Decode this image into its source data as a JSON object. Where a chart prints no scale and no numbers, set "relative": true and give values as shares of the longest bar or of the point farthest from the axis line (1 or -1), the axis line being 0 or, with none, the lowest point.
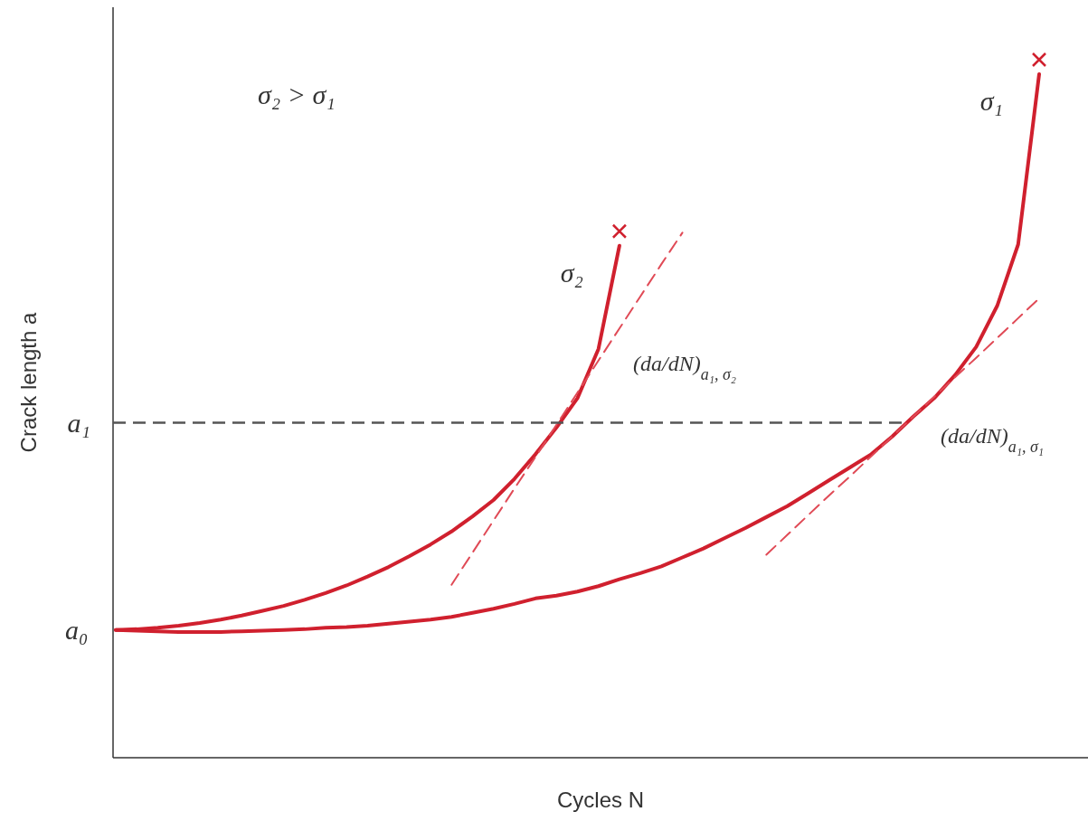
{
  "chart_data": {
    "type": "line",
    "relative": true,
    "xlabel": "Cycles N",
    "ylabel": "Crack length a",
    "categories": [
      null,
      null,
      null,
      null,
      null,
      null,
      null,
      null,
      null,
      null,
      null,
      null,
      null,
      null,
      null,
      null,
      null,
      null,
      null,
      null,
      null,
      null,
      null,
      null,
      null,
      null,
      null,
      null,
      null,
      null,
      null,
      null,
      null,
      null,
      null,
      null,
      null,
      null,
      null,
      null,
      null,
      null,
      null,
      null,
      null
    ],
    "series": [
      {
        "name": "σ₂",
        "color": "#d0202e",
        "values": [
          0.187,
          0.188,
          0.19,
          0.193,
          0.197,
          0.202,
          0.208,
          0.215,
          0.222,
          0.231,
          0.241,
          0.252,
          0.265,
          0.279,
          0.295,
          0.312,
          0.331,
          0.353,
          0.377,
          0.408,
          0.444,
          0.483,
          0.526,
          0.598,
          0.749,
          null,
          null,
          null,
          null,
          null,
          null,
          null,
          null,
          null,
          null,
          null,
          null,
          null,
          null,
          null,
          null,
          null,
          null,
          null,
          null
        ]
      },
      {
        "name": "σ₁",
        "color": "#d0202e",
        "values": [
          0.187,
          0.186,
          0.185,
          0.184,
          0.184,
          0.184,
          0.185,
          0.186,
          0.187,
          0.188,
          0.19,
          0.191,
          0.193,
          0.196,
          0.199,
          0.202,
          0.206,
          0.212,
          0.218,
          0.225,
          0.233,
          0.237,
          0.243,
          0.251,
          0.261,
          0.27,
          0.28,
          0.293,
          0.306,
          0.321,
          0.336,
          0.352,
          0.368,
          0.387,
          0.406,
          0.425,
          0.444,
          0.47,
          0.499,
          0.526,
          0.56,
          0.601,
          0.661,
          0.751,
          1.0
        ]
      },
      {
        "color": "#e04a56",
        "line_style": "dashed",
        "values": [
          null,
          null,
          null,
          null,
          null,
          null,
          null,
          null,
          null,
          null,
          null,
          null,
          null,
          null,
          null,
          null,
          0.253,
          0.3,
          0.347,
          0.394,
          0.44,
          0.487,
          0.534,
          0.581,
          0.628,
          0.675,
          0.722,
          0.768,
          null,
          null,
          null,
          null,
          null,
          null,
          null,
          null,
          null,
          null,
          null,
          null,
          null,
          null,
          null,
          null,
          null
        ]
      },
      {
        "color": "#e04a56",
        "line_style": "dashed",
        "values": [
          null,
          null,
          null,
          null,
          null,
          null,
          null,
          null,
          null,
          null,
          null,
          null,
          null,
          null,
          null,
          null,
          null,
          null,
          null,
          null,
          null,
          null,
          null,
          null,
          null,
          null,
          null,
          null,
          null,
          null,
          null,
          0.297,
          0.326,
          0.355,
          0.384,
          0.412,
          0.441,
          0.47,
          0.499,
          0.528,
          0.557,
          0.585,
          0.614,
          0.643,
          0.672
        ]
      }
    ],
    "ref_lines": [
      {
        "axis": "y",
        "value": 0.49,
        "label": "a₁",
        "color": "#555555",
        "line_style": "dashed"
      }
    ],
    "annotations": [
      "σ₂ > σ₁",
      "(da/dN)$_{a₁, σ₂}$",
      "(da/dN)$_{a₁, σ₁}$",
      "a₀"
    ]
  }
}
